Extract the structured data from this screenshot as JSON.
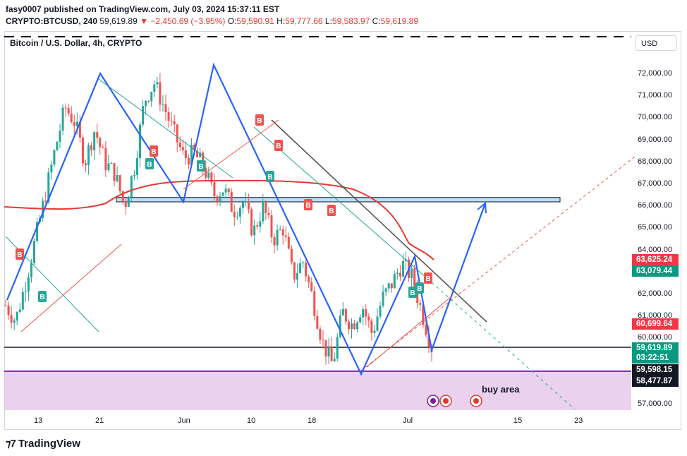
{
  "header": {
    "published_line": "fasy0007 published on TradingView.com, July 03, 2024 15:37:11 EST",
    "symbol": "CRYPTO:BTCUSD, 240",
    "last_price": "59,619.89",
    "change": "▼ −2,450.69 (−3.95%)",
    "open_label": "O:",
    "open": "59,590.91",
    "high_label": "H:",
    "high": "59,777.66",
    "low_label": "L:",
    "low": "59,583.97",
    "close_label": "C:",
    "close": "59,619.89"
  },
  "chart": {
    "title": "Bitcoin / U.S. Dollar, 4h, CRYPTO",
    "currency": "USD",
    "y_ticks": [
      "72,000.00",
      "71,000.00",
      "70,000.00",
      "69,000.00",
      "68,000.00",
      "67,000.00",
      "66,000.00",
      "65,000.00",
      "64,000.00",
      "62,000.00",
      "61,000.00",
      "60,000.00",
      "57,000.00"
    ],
    "x_ticks": [
      "13",
      "21",
      "Jun",
      "10",
      "18",
      "Jul",
      "15",
      "23"
    ],
    "price_labels": [
      {
        "text": "63,625.24",
        "color": "#f23645"
      },
      {
        "text": "63,079.44",
        "color": "#089981"
      },
      {
        "text": "60,699.64",
        "color": "#f23645"
      },
      {
        "text": "59,619.89",
        "color": "#089981"
      },
      {
        "text": "03:22:51",
        "color": "#089981"
      },
      {
        "text": "59,598.15",
        "color": "#131722"
      },
      {
        "text": "58,477.87",
        "color": "#131722"
      }
    ],
    "annotation": "buy area",
    "colors": {
      "up": "#26a69a",
      "down": "#ef5350",
      "pattern": "#2962ff",
      "ma": "#e53935",
      "zone": "#e1bee7",
      "resistance": "#bbdefb"
    }
  },
  "chart_data": {
    "type": "candlestick",
    "title": "Bitcoin / U.S. Dollar, 4h, CRYPTO",
    "xlabel": "",
    "ylabel": "",
    "ylim": [
      56600,
      73200
    ],
    "x_ticks": [
      "13",
      "21",
      "Jun",
      "10",
      "18",
      "Jul",
      "15",
      "23"
    ],
    "close_path": [
      61500,
      60800,
      62500,
      64500,
      66500,
      68600,
      70500,
      69800,
      68000,
      69500,
      68000,
      67500,
      66000,
      67800,
      70800,
      71600,
      70500,
      69300,
      68200,
      68400,
      67800,
      66500,
      66800,
      65800,
      66200,
      64800,
      66000,
      64500,
      65000,
      62800,
      63500,
      61800,
      59800,
      58800,
      61200,
      60600,
      61500,
      60200,
      61800,
      62500,
      63400,
      62800,
      61200,
      59600
    ],
    "levels": [
      {
        "name": "resistance zone",
        "low": 66200,
        "high": 66400
      },
      {
        "name": "support line",
        "value": 59598.15
      },
      {
        "name": "buy area",
        "low": 56800,
        "high": 58477.87
      }
    ],
    "projection": [
      {
        "x": "Jul 3",
        "y": 59600
      },
      {
        "x": "Jul 11",
        "y": 66100
      }
    ],
    "last_price": 59619.89
  }
}
